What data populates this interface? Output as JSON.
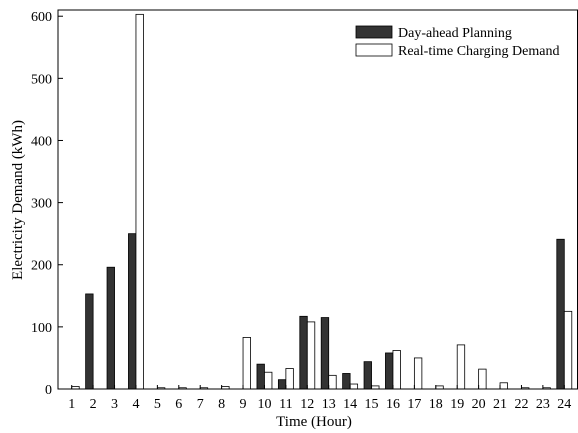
{
  "chart_data": {
    "type": "bar",
    "xlabel": "Time (Hour)",
    "ylabel": "Electricity Demand (kWh)",
    "categories": [
      "1",
      "2",
      "3",
      "4",
      "5",
      "6",
      "7",
      "8",
      "9",
      "10",
      "11",
      "12",
      "13",
      "14",
      "15",
      "16",
      "17",
      "18",
      "19",
      "20",
      "21",
      "22",
      "23",
      "24"
    ],
    "series": [
      {
        "name": "Day-ahead Planning",
        "color": "#333333",
        "values": [
          0,
          153,
          196,
          250,
          0,
          0,
          0,
          0,
          0,
          40,
          15,
          117,
          115,
          25,
          44,
          58,
          0,
          0,
          0,
          0,
          0,
          0,
          0,
          241
        ]
      },
      {
        "name": "Real-time Charging Demand",
        "color": "#ffffff",
        "values": [
          4,
          0,
          0,
          603,
          2,
          2,
          2,
          4,
          83,
          27,
          33,
          108,
          22,
          8,
          5,
          62,
          50,
          5,
          71,
          32,
          10,
          2,
          2,
          125
        ]
      }
    ],
    "ylim": [
      0,
      610
    ],
    "yticks": [
      0,
      100,
      200,
      300,
      400,
      500,
      600
    ],
    "grid": false,
    "legend_position": "top-right"
  }
}
